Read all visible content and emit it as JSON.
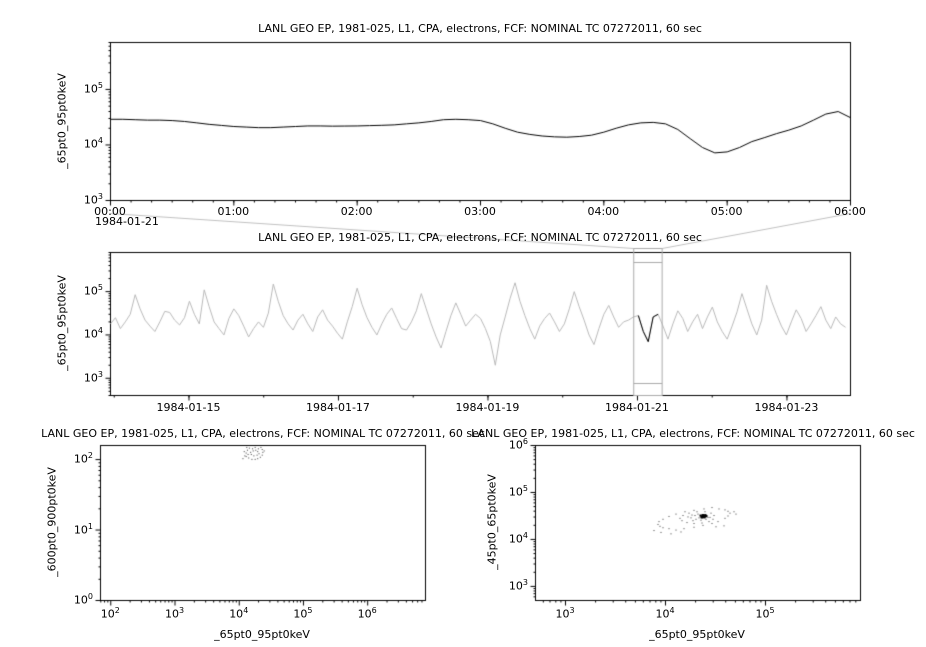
{
  "window": {
    "background": "#ffffff"
  },
  "colors": {
    "series_main": "#000000",
    "series_context": "#b9b9b9",
    "highlight": "#000000",
    "selection_box": "#aaaaaa",
    "connector": "#c0c0c0",
    "frame": "#000000",
    "scatter_dot": "#3a3a3a",
    "scatter_knot": "#000000"
  },
  "chart_data": [
    {
      "type": "line",
      "title": "LANL GEO EP, 1981-025, L1, CPA, electrons, FCF: NOMINAL TC 07272011, 60 sec",
      "ylabel": "_65pt0_95pt0keV",
      "xlabel": "",
      "x_axis": {
        "kind": "time",
        "date_label": "1984-01-21",
        "tick_labels": [
          "00:00",
          "01:00",
          "02:00",
          "03:00",
          "04:00",
          "05:00",
          "06:00"
        ],
        "tick_hours": [
          0,
          1,
          2,
          3,
          4,
          5,
          6
        ],
        "range_hours": [
          0,
          6
        ]
      },
      "y_axis": {
        "kind": "log",
        "tick_exponents": [
          3,
          4,
          5
        ],
        "range": [
          1000,
          700000
        ]
      },
      "series": [
        {
          "name": "_65pt0_95pt0keV",
          "x_start_hours": 0.0,
          "x_step_hours": 0.1,
          "unit_scale": 1000,
          "values": [
            29,
            29,
            28.5,
            28,
            28,
            27.5,
            26.5,
            25,
            23.5,
            22.5,
            21.5,
            21,
            20.5,
            20.5,
            21,
            21.5,
            22,
            22,
            21.8,
            21.9,
            22,
            22.3,
            22.6,
            23,
            24,
            25,
            26.5,
            28.5,
            29,
            28.5,
            27.5,
            24,
            20,
            17,
            15.5,
            14.5,
            14,
            13.8,
            14.2,
            15,
            17,
            20,
            23,
            25,
            25.5,
            24,
            19,
            13,
            9,
            7.2,
            7.5,
            9,
            11.5,
            13.5,
            16,
            18.5,
            22,
            28,
            36,
            40,
            31
          ]
        }
      ]
    },
    {
      "type": "line",
      "title": "LANL GEO EP, 1981-025, L1, CPA, electrons, FCF: NOMINAL TC 07272011, 60 sec",
      "ylabel": "_65pt0_95pt0keV",
      "xlabel": "",
      "x_axis": {
        "kind": "time",
        "tick_labels": [
          "1984-01-15",
          "1984-01-17",
          "1984-01-19",
          "1984-01-21",
          "1984-01-23"
        ],
        "tick_days": [
          15,
          17,
          19,
          21,
          23
        ],
        "range_days": [
          13.95,
          23.85
        ]
      },
      "y_axis": {
        "kind": "log",
        "tick_exponents": [
          3,
          4,
          5
        ],
        "range": [
          400,
          800000
        ]
      },
      "selection_box_days": [
        20.95,
        21.33
      ],
      "highlight_days": [
        20.98,
        21.32
      ],
      "series": [
        {
          "name": "_65pt0_95pt0keV",
          "x_start_days": 13.95,
          "x_step_days": 0.066,
          "unit_scale": 1000,
          "values": [
            18,
            25,
            14,
            20,
            30,
            85,
            40,
            22,
            16,
            12,
            20,
            35,
            33,
            22,
            17,
            25,
            60,
            30,
            18,
            110,
            45,
            20,
            14,
            10,
            24,
            40,
            28,
            16,
            9,
            14,
            20,
            15,
            32,
            150,
            60,
            28,
            18,
            13,
            22,
            30,
            18,
            12,
            26,
            38,
            22,
            16,
            11,
            8,
            20,
            45,
            120,
            50,
            25,
            15,
            10,
            18,
            30,
            42,
            24,
            14,
            13,
            20,
            36,
            90,
            40,
            18,
            9,
            5,
            12,
            28,
            55,
            30,
            16,
            22,
            30,
            24,
            14,
            7,
            2,
            10,
            26,
            70,
            160,
            60,
            28,
            14,
            8,
            16,
            24,
            32,
            20,
            12,
            18,
            40,
            100,
            45,
            22,
            10,
            6,
            14,
            30,
            48,
            26,
            15,
            20,
            22,
            26,
            28,
            12,
            7,
            26,
            30,
            16,
            8,
            18,
            36,
            24,
            12,
            20,
            30,
            14,
            26,
            44,
            20,
            12,
            8,
            16,
            34,
            90,
            40,
            18,
            10,
            22,
            140,
            60,
            30,
            16,
            10,
            20,
            38,
            24,
            12,
            18,
            28,
            45,
            22,
            14,
            26,
            18,
            15
          ]
        }
      ]
    },
    {
      "type": "scatter",
      "title": "LANL GEO EP, 1981-025, L1, CPA, electrons, FCF: NOMINAL TC 07272011, 60 sec",
      "ylabel": "_600pt0_900pt0keV",
      "xlabel": "_65pt0_95pt0keV",
      "x_axis": {
        "kind": "log",
        "tick_exponents": [
          2,
          3,
          4,
          5,
          6
        ],
        "range_log": [
          1.84,
          6.9
        ]
      },
      "y_axis": {
        "kind": "log",
        "tick_exponents": [
          0,
          1,
          2
        ],
        "range_log": [
          0,
          2.2
        ]
      },
      "points_log": [
        [
          4.05,
          2.02
        ],
        [
          4.08,
          2.06
        ],
        [
          4.1,
          2.1
        ],
        [
          4.12,
          2.14
        ],
        [
          4.15,
          2.17
        ],
        [
          4.18,
          2.19
        ],
        [
          4.22,
          2.21
        ],
        [
          4.26,
          2.22
        ],
        [
          4.3,
          2.21
        ],
        [
          4.33,
          2.18
        ],
        [
          4.35,
          2.15
        ],
        [
          4.36,
          2.11
        ],
        [
          4.35,
          2.07
        ],
        [
          4.32,
          2.04
        ],
        [
          4.28,
          2.02
        ],
        [
          4.24,
          2.01
        ],
        [
          4.19,
          2.01
        ],
        [
          4.14,
          2.03
        ],
        [
          4.1,
          2.05
        ],
        [
          4.13,
          2.08
        ],
        [
          4.17,
          2.11
        ],
        [
          4.21,
          2.13
        ],
        [
          4.25,
          2.14
        ],
        [
          4.28,
          2.12
        ],
        [
          4.3,
          2.09
        ],
        [
          4.27,
          2.07
        ],
        [
          4.22,
          2.06
        ],
        [
          4.18,
          2.08
        ],
        [
          4.2,
          2.16
        ],
        [
          4.24,
          2.18
        ],
        [
          4.29,
          2.16
        ],
        [
          4.16,
          2.2
        ],
        [
          4.33,
          2.2
        ],
        [
          4.07,
          2.12
        ],
        [
          4.38,
          2.13
        ],
        [
          4.11,
          2.18
        ]
      ]
    },
    {
      "type": "scatter",
      "title": "LANL GEO EP, 1981-025, L1, CPA, electrons, FCF: NOMINAL TC 07272011, 60 sec",
      "ylabel": "_45pt0_65pt0keV",
      "xlabel": "_65pt0_95pt0keV",
      "x_axis": {
        "kind": "log",
        "tick_exponents": [
          3,
          4,
          5
        ],
        "range_log": [
          2.7,
          5.95
        ]
      },
      "y_axis": {
        "kind": "log",
        "tick_exponents": [
          3,
          4,
          5,
          6
        ],
        "range_log": [
          2.7,
          6.0
        ]
      },
      "points_log": [
        [
          4.64,
          4.57
        ],
        [
          4.62,
          4.61
        ],
        [
          4.59,
          4.64
        ],
        [
          4.53,
          4.66
        ],
        [
          4.46,
          4.69
        ],
        [
          4.38,
          4.66
        ],
        [
          4.28,
          4.63
        ],
        [
          4.19,
          4.6
        ],
        [
          4.1,
          4.55
        ],
        [
          4.03,
          4.5
        ],
        [
          3.97,
          4.44
        ],
        [
          3.93,
          4.39
        ],
        [
          3.92,
          4.33
        ],
        [
          3.94,
          4.29
        ],
        [
          3.97,
          4.26
        ],
        [
          4.03,
          4.24
        ],
        [
          4.1,
          4.21
        ],
        [
          4.18,
          4.24
        ],
        [
          4.28,
          4.27
        ],
        [
          4.37,
          4.31
        ],
        [
          4.46,
          4.35
        ],
        [
          4.52,
          4.39
        ],
        [
          4.59,
          4.46
        ],
        [
          4.62,
          4.51
        ],
        [
          4.48,
          4.52
        ],
        [
          4.45,
          4.57
        ],
        [
          4.39,
          4.6
        ],
        [
          4.31,
          4.6
        ],
        [
          4.23,
          4.57
        ],
        [
          4.17,
          4.52
        ],
        [
          4.14,
          4.46
        ],
        [
          4.16,
          4.41
        ],
        [
          4.21,
          4.37
        ],
        [
          4.28,
          4.35
        ],
        [
          4.36,
          4.36
        ],
        [
          4.43,
          4.39
        ],
        [
          4.47,
          4.44
        ],
        [
          4.44,
          4.48
        ],
        [
          4.37,
          4.51
        ],
        [
          4.29,
          4.52
        ],
        [
          4.25,
          4.47
        ],
        [
          4.3,
          4.44
        ],
        [
          4.35,
          4.42
        ],
        [
          4.4,
          4.44
        ],
        [
          4.42,
          4.48
        ],
        [
          4.38,
          4.53
        ],
        [
          4.32,
          4.55
        ],
        [
          4.26,
          4.53
        ],
        [
          4.22,
          4.49
        ],
        [
          4.27,
          4.41
        ],
        [
          4.33,
          4.47
        ],
        [
          4.39,
          4.49
        ],
        [
          3.88,
          4.2
        ],
        [
          3.95,
          4.16
        ],
        [
          4.05,
          4.13
        ],
        [
          4.15,
          4.17
        ],
        [
          4.68,
          4.6
        ],
        [
          4.7,
          4.55
        ],
        [
          4.58,
          4.3
        ],
        [
          4.5,
          4.28
        ]
      ],
      "dense_points_log": [
        [
          4.36,
          4.52
        ],
        [
          4.38,
          4.53
        ],
        [
          4.37,
          4.5
        ],
        [
          4.39,
          4.51
        ],
        [
          4.35,
          4.51
        ],
        [
          4.37,
          4.54
        ],
        [
          4.38,
          4.49
        ],
        [
          4.36,
          4.49
        ],
        [
          4.4,
          4.52
        ],
        [
          4.34,
          4.53
        ],
        [
          4.37,
          4.52
        ],
        [
          4.36,
          4.54
        ],
        [
          4.39,
          4.54
        ],
        [
          4.35,
          4.49
        ]
      ]
    }
  ]
}
